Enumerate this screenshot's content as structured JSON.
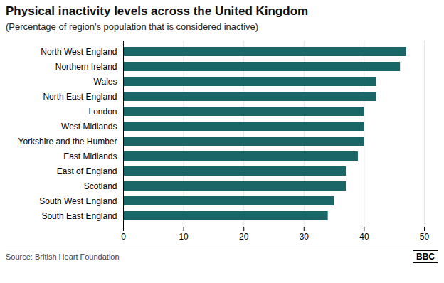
{
  "chart_data": {
    "type": "bar",
    "orientation": "horizontal",
    "title": "Physical inactivity levels across the United Kingdom",
    "subtitle": "(Percentage of region's population that is considered inactive)",
    "source": "Source: British Heart Foundation",
    "annotations": [
      "BBC"
    ],
    "categories": [
      "South East England",
      "South West England",
      "Scotland",
      "East of England",
      "East Midlands",
      "Yorkshire and the Humber",
      "West Midlands",
      "London",
      "North East England",
      "Wales",
      "Northern Ireland",
      "North West England"
    ],
    "values": [
      34,
      35,
      37,
      37,
      39,
      40,
      40,
      40,
      42,
      42,
      46,
      47
    ],
    "color": "#1a6666",
    "xlim": [
      0,
      50
    ],
    "xticks": [
      0,
      10,
      20,
      30,
      40,
      50
    ],
    "grid": true
  }
}
